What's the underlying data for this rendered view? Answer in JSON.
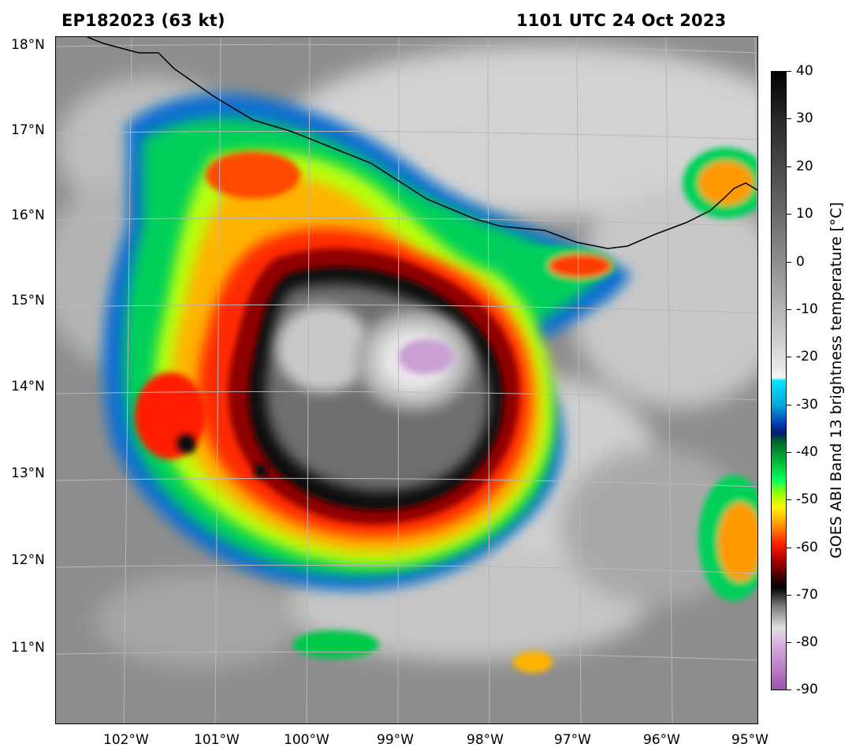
{
  "header": {
    "storm": "EP182023 (63 kt)",
    "time": "1101 UTC 24 Oct 2023"
  },
  "map": {
    "lat_labels": [
      "18°N",
      "17°N",
      "16°N",
      "15°N",
      "14°N",
      "13°N",
      "12°N",
      "11°N"
    ],
    "lon_labels": [
      "102°W",
      "101°W",
      "100°W",
      "99°W",
      "98°W",
      "97°W",
      "96°W",
      "95°W"
    ],
    "lat_range": [
      10.1,
      18.1
    ],
    "lon_range": [
      -102.9,
      -94.9
    ],
    "storm_center": {
      "lat": 14.3,
      "lon": -98.8
    },
    "colors": {
      "ocean_gray": "#8a8a8a",
      "cloud_white": "#e6e6e6",
      "coastline": "#000000"
    }
  },
  "colorbar": {
    "title": "GOES ABI Band 13 brightness temperature [°C]",
    "ticks": [
      "40",
      "30",
      "20",
      "10",
      "0",
      "-10",
      "-20",
      "-30",
      "-40",
      "-50",
      "-60",
      "-70",
      "-80",
      "-90"
    ],
    "range": [
      -90,
      40
    ]
  }
}
